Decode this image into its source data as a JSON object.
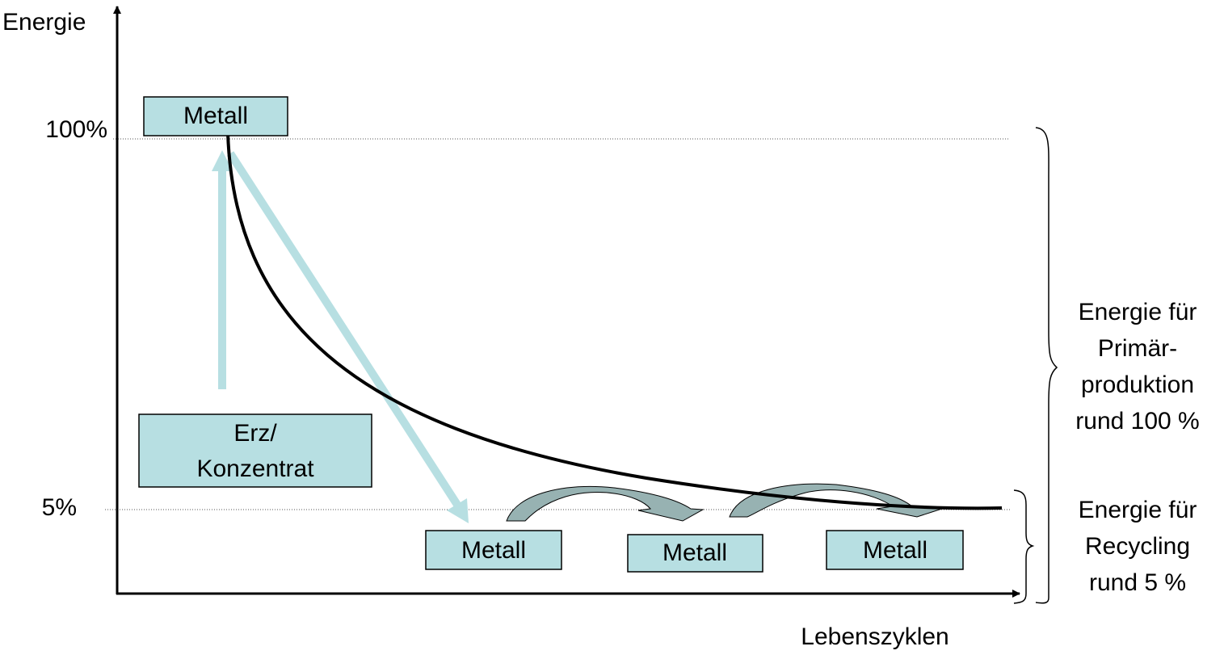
{
  "axes": {
    "y_label": "Energie",
    "x_label": "Lebenszyklen"
  },
  "levels": [
    {
      "label": "100%"
    },
    {
      "label": "5%"
    }
  ],
  "boxes": [
    {
      "lines": [
        "Metall"
      ]
    },
    {
      "lines": [
        "Erz/",
        "Konzentrat"
      ]
    },
    {
      "lines": [
        "Metall"
      ]
    },
    {
      "lines": [
        "Metall"
      ]
    },
    {
      "lines": [
        "Metall"
      ]
    }
  ],
  "braces": [
    {
      "lines": [
        "Energie für",
        "Primär-",
        "produktion",
        "rund 100 %"
      ]
    },
    {
      "lines": [
        "Energie für",
        "Recycling",
        "rund 5 %"
      ]
    }
  ]
}
